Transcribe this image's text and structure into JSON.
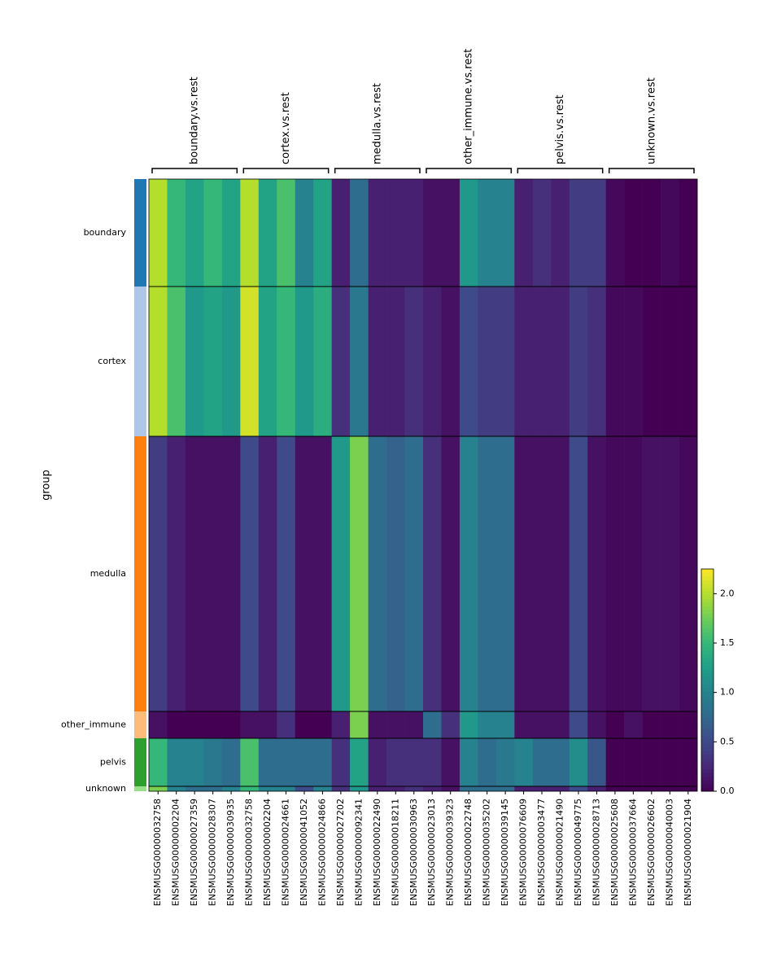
{
  "chart_data": {
    "type": "heatmap",
    "ylabel": "group",
    "groups": [
      "boundary",
      "cortex",
      "medulla",
      "other_immune",
      "pelvis",
      "unknown"
    ],
    "group_colors": [
      "#1f77b4",
      "#aec7e8",
      "#ff7f0e",
      "#ffbb78",
      "#2ca02c",
      "#98df8a"
    ],
    "group_sizes": [
      132,
      184,
      338,
      33,
      59,
      6
    ],
    "gene_groups": [
      {
        "name": "boundary.vs.rest",
        "genes": [
          "ENSMUSG00000032758",
          "ENSMUSG00000002204",
          "ENSMUSG00000027359",
          "ENSMUSG00000028307",
          "ENSMUSG00000030935"
        ]
      },
      {
        "name": "cortex.vs.rest",
        "genes": [
          "ENSMUSG00000032758",
          "ENSMUSG00000002204",
          "ENSMUSG00000024661",
          "ENSMUSG00000041052",
          "ENSMUSG00000024866"
        ]
      },
      {
        "name": "medulla.vs.rest",
        "genes": [
          "ENSMUSG00000027202",
          "ENSMUSG00000092341",
          "ENSMUSG00000022490",
          "ENSMUSG00000018211",
          "ENSMUSG00000030963"
        ]
      },
      {
        "name": "other_immune.vs.rest",
        "genes": [
          "ENSMUSG00000023013",
          "ENSMUSG00000039323",
          "ENSMUSG00000022748",
          "ENSMUSG00000035202",
          "ENSMUSG00000039145"
        ]
      },
      {
        "name": "pelvis.vs.rest",
        "genes": [
          "ENSMUSG00000076609",
          "ENSMUSG00000003477",
          "ENSMUSG00000021490",
          "ENSMUSG00000049775",
          "ENSMUSG00000028713"
        ]
      },
      {
        "name": "unknown.vs.rest",
        "genes": [
          "ENSMUSG00000025608",
          "ENSMUSG00000037664",
          "ENSMUSG00000026602",
          "ENSMUSG00000040003",
          "ENSMUSG00000021904"
        ]
      }
    ],
    "values": [
      [
        2.0,
        1.5,
        1.3,
        1.5,
        1.3,
        2.0,
        1.3,
        1.6,
        1.0,
        1.3,
        0.2,
        0.8,
        0.2,
        0.2,
        0.2,
        0.1,
        0.1,
        1.2,
        1.0,
        1.0,
        0.2,
        0.3,
        0.2,
        0.4,
        0.4,
        0.05,
        0,
        0,
        0.05,
        0
      ],
      [
        2.0,
        1.6,
        1.2,
        1.3,
        1.2,
        2.1,
        1.3,
        1.5,
        1.2,
        1.4,
        0.3,
        0.9,
        0.2,
        0.2,
        0.3,
        0.2,
        0.1,
        0.5,
        0.4,
        0.4,
        0.2,
        0.2,
        0.2,
        0.4,
        0.3,
        0.05,
        0.05,
        0,
        0,
        0
      ],
      [
        0.4,
        0.2,
        0.1,
        0.1,
        0.1,
        0.5,
        0.2,
        0.5,
        0.1,
        0.1,
        1.2,
        1.8,
        0.8,
        0.7,
        0.8,
        0.3,
        0.1,
        1.0,
        0.8,
        0.8,
        0.1,
        0.1,
        0.1,
        0.5,
        0.1,
        0.05,
        0.05,
        0.1,
        0.1,
        0.05
      ],
      [
        0.1,
        0,
        0,
        0,
        0,
        0.1,
        0.1,
        0.3,
        0,
        0,
        0.2,
        1.8,
        0.1,
        0.1,
        0.1,
        0.8,
        0.3,
        1.2,
        1.0,
        1.0,
        0.1,
        0.1,
        0.1,
        0.5,
        0.1,
        0,
        0.1,
        0,
        0,
        0
      ],
      [
        1.5,
        1.0,
        1.0,
        0.9,
        0.8,
        1.6,
        0.8,
        0.8,
        0.8,
        0.8,
        0.3,
        1.3,
        0.2,
        0.3,
        0.3,
        0.3,
        0.1,
        1.0,
        0.8,
        0.9,
        1.0,
        0.8,
        0.8,
        1.1,
        0.6,
        0,
        0,
        0,
        0,
        0
      ],
      [
        1.8,
        1.0,
        0.8,
        0.8,
        1.0,
        1.5,
        1.0,
        1.0,
        0.5,
        1.0,
        0.3,
        1.2,
        0.2,
        0.2,
        0.3,
        0.2,
        0.1,
        0.8,
        0.8,
        0.8,
        0.2,
        0.2,
        0.2,
        0.5,
        0.2,
        0,
        0,
        0,
        0,
        0
      ]
    ],
    "colormap": "viridis",
    "clim": [
      0,
      2.25
    ],
    "cticks": [
      {
        "value": 0,
        "label": "0.0"
      },
      {
        "value": 0.5,
        "label": "0.5"
      },
      {
        "value": 1,
        "label": "1.0"
      },
      {
        "value": 1.5,
        "label": "1.5"
      },
      {
        "value": 2,
        "label": "2.0"
      }
    ]
  }
}
